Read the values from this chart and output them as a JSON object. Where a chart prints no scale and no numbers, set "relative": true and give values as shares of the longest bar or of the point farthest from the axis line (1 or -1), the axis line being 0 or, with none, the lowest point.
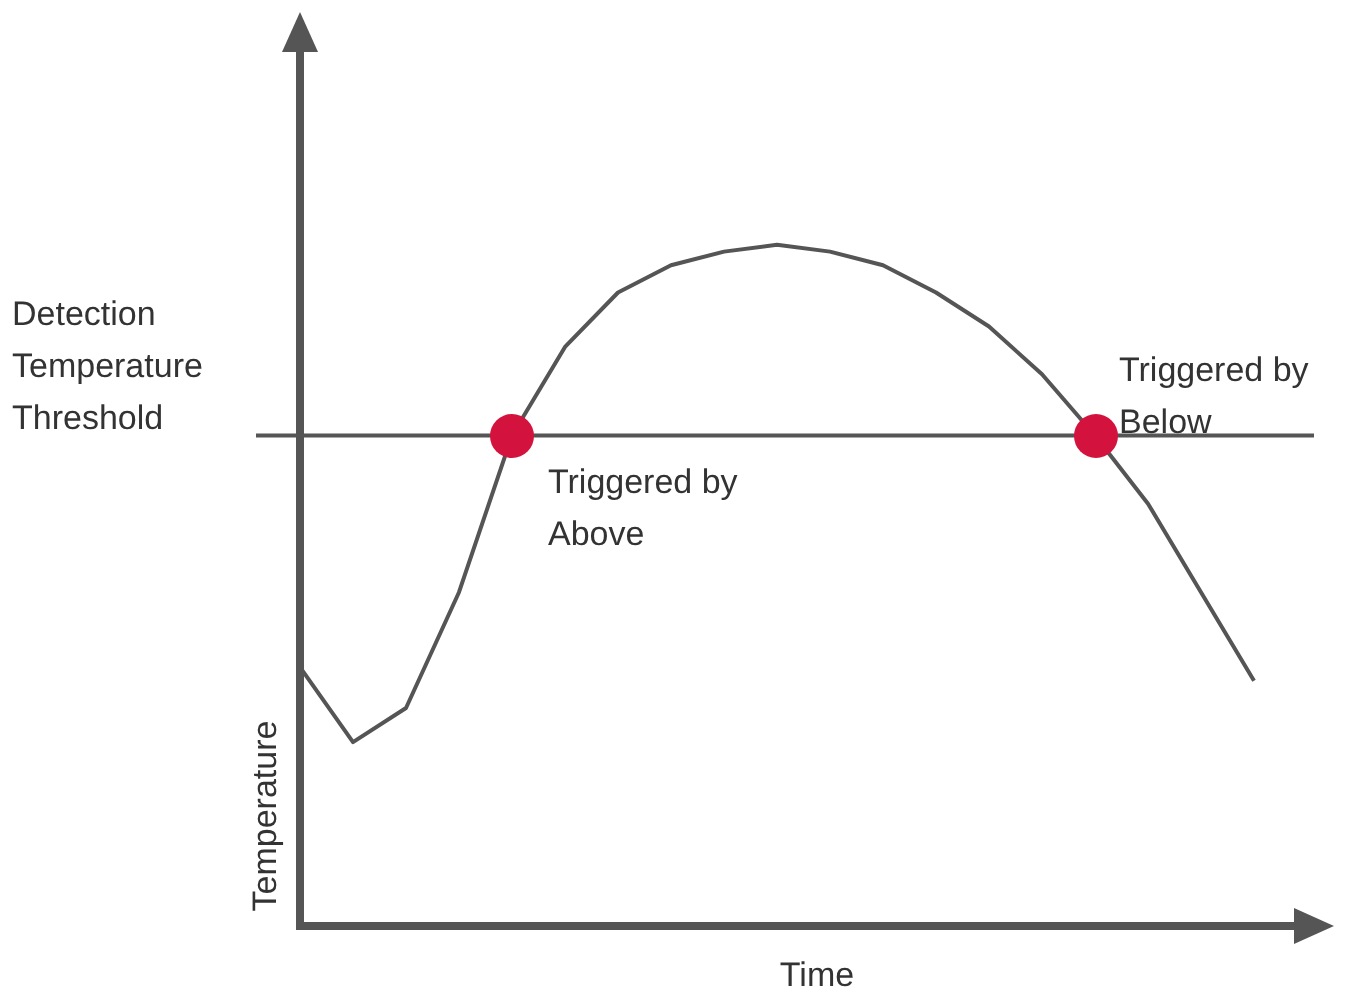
{
  "chart_data": {
    "type": "line",
    "relative": true,
    "xlabel": "Time",
    "ylabel": "Temperature",
    "categories": [
      null,
      null,
      null,
      null,
      null,
      null,
      null,
      null,
      null,
      null,
      null,
      null,
      null,
      null,
      null,
      null,
      null,
      null,
      null
    ],
    "series": [
      {
        "color": "#555555",
        "values": [
          0.38,
          0.27,
          0.32,
          0.49,
          0.72,
          0.85,
          0.93,
          0.97,
          0.99,
          1,
          0.99,
          0.97,
          0.93,
          0.88,
          0.81,
          0.72,
          0.62,
          0.49,
          0.36
        ]
      }
    ],
    "ref_lines": [
      {
        "axis": "y",
        "value": 0.72,
        "label": "Detection Temperature Threshold",
        "color": "#555555"
      }
    ],
    "annotations": [
      "Triggered by Above",
      "Triggered by Below"
    ],
    "marker": "none",
    "line_style": "solid",
    "legend": false
  }
}
